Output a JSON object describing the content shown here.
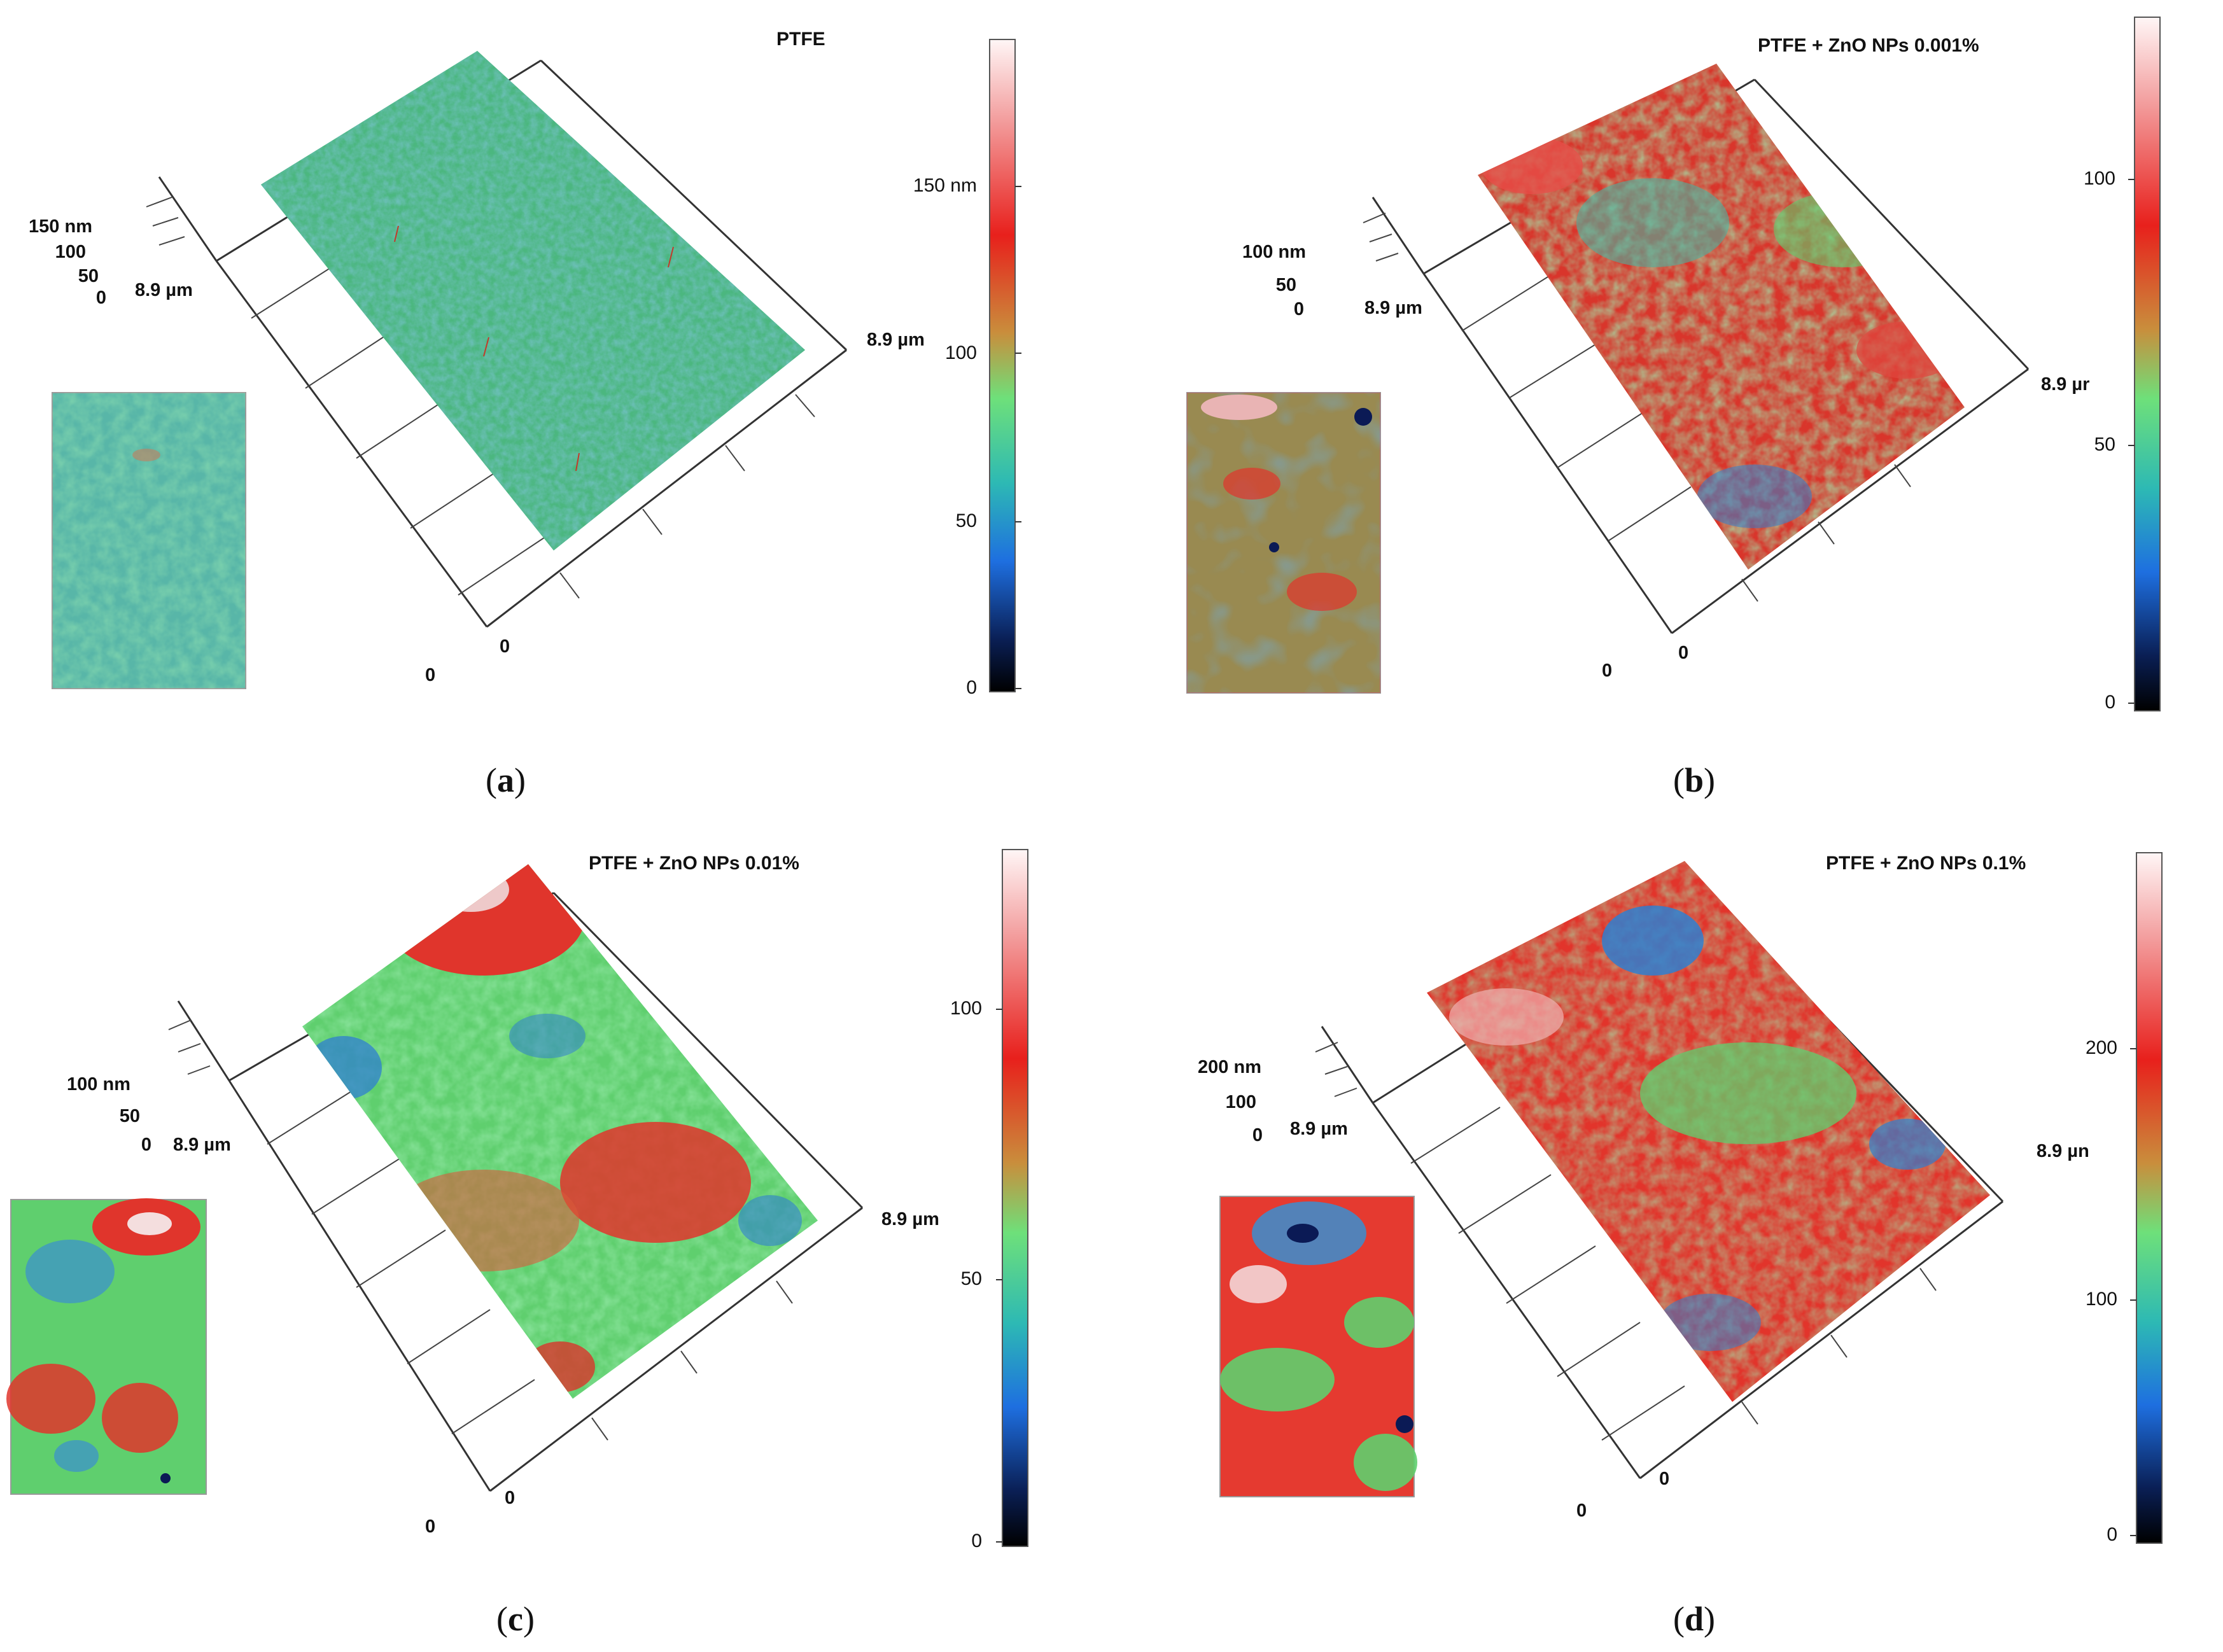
{
  "figure": {
    "panels": [
      {
        "id": "a",
        "caption_letter": "a",
        "title": "PTFE",
        "z_labels": [
          "150 nm",
          "100",
          "50",
          "0"
        ],
        "x_extent": "8.9 µm",
        "y_extent": "8.9 µm",
        "origin_front": "0",
        "origin_side": "0",
        "colorbar_ticks": [
          "150 nm",
          "100",
          "50",
          "0"
        ],
        "colors": {
          "dominant": "#4fc07a",
          "secondary": "#3a8fc8",
          "highlight": "#d23a2a"
        }
      },
      {
        "id": "b",
        "caption_letter": "b",
        "title": "PTFE + ZnO NPs 0.001%",
        "z_labels": [
          "100 nm",
          "50",
          "0"
        ],
        "x_extent": "8.9 µm",
        "y_extent": "8.9 µr",
        "origin_front": "0",
        "origin_side": "0",
        "colorbar_ticks": [
          "100",
          "50",
          "0"
        ],
        "colors": {
          "dominant": "#d9352b",
          "secondary": "#5fcf6e",
          "highlight": "#2f7fd0"
        }
      },
      {
        "id": "c",
        "caption_letter": "c",
        "title": "PTFE + ZnO NPs 0.01%",
        "z_labels": [
          "100 nm",
          "50",
          "0"
        ],
        "x_extent": "8.9 µm",
        "y_extent": "8.9 µm",
        "origin_front": "0",
        "origin_side": "0",
        "colorbar_ticks": [
          "100",
          "50",
          "0"
        ],
        "colors": {
          "dominant": "#5fcf6e",
          "secondary": "#d9352b",
          "highlight": "#2f7fd0"
        }
      },
      {
        "id": "d",
        "caption_letter": "d",
        "title": "PTFE + ZnO NPs 0.1%",
        "z_labels": [
          "200 nm",
          "100",
          "0"
        ],
        "x_extent": "8.9 µm",
        "y_extent": "8.9 µn",
        "origin_front": "0",
        "origin_side": "0",
        "colorbar_ticks": [
          "200",
          "100",
          "0"
        ],
        "colors": {
          "dominant": "#e2342b",
          "secondary": "#5fcf6e",
          "highlight": "#2f7fd0"
        }
      }
    ]
  }
}
